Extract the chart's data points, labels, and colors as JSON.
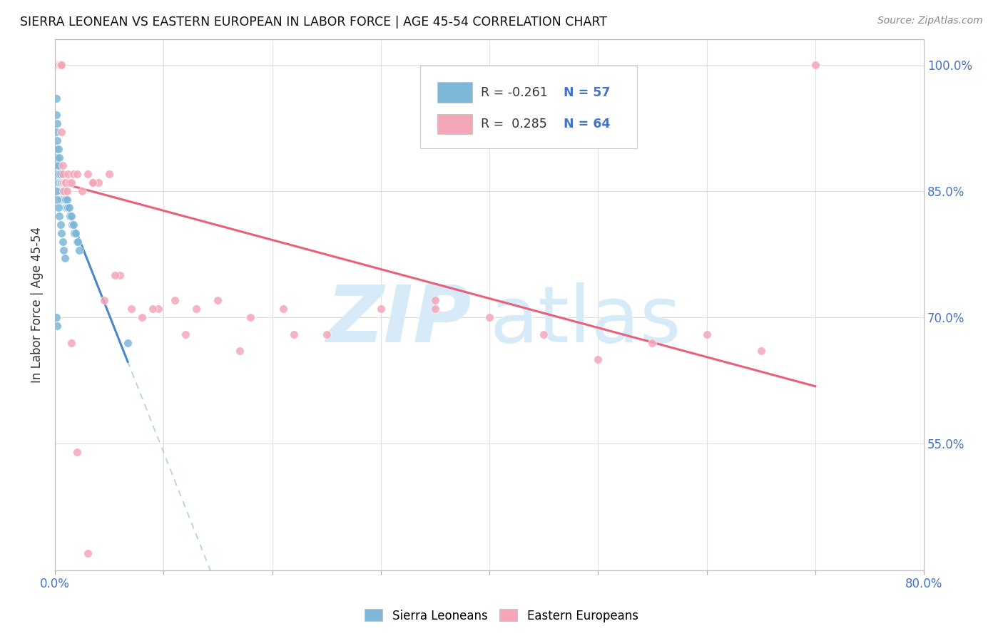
{
  "title": "SIERRA LEONEAN VS EASTERN EUROPEAN IN LABOR FORCE | AGE 45-54 CORRELATION CHART",
  "source": "Source: ZipAtlas.com",
  "ylabel": "In Labor Force | Age 45-54",
  "xlim": [
    0.0,
    0.8
  ],
  "ylim": [
    0.4,
    1.03
  ],
  "legend_r_blue": "-0.261",
  "legend_n_blue": "57",
  "legend_r_pink": "0.285",
  "legend_n_pink": "64",
  "color_blue": "#7eb8d8",
  "color_pink": "#f4a7b9",
  "color_trendline_blue": "#4a86c8",
  "color_trendline_pink": "#e8607a",
  "watermark_zip_color": "#d6eaf8",
  "watermark_atlas_color": "#d6eaf8",
  "background_color": "#ffffff",
  "grid_color": "#dddddd",
  "blue_x": [
    0.001,
    0.001,
    0.001,
    0.001,
    0.001,
    0.002,
    0.002,
    0.002,
    0.002,
    0.002,
    0.003,
    0.003,
    0.003,
    0.003,
    0.004,
    0.004,
    0.004,
    0.004,
    0.005,
    0.005,
    0.005,
    0.006,
    0.006,
    0.006,
    0.007,
    0.007,
    0.008,
    0.008,
    0.009,
    0.009,
    0.01,
    0.01,
    0.011,
    0.011,
    0.012,
    0.013,
    0.014,
    0.015,
    0.016,
    0.017,
    0.018,
    0.019,
    0.02,
    0.021,
    0.022,
    0.001,
    0.002,
    0.003,
    0.004,
    0.005,
    0.006,
    0.007,
    0.008,
    0.009,
    0.001,
    0.002,
    0.067
  ],
  "blue_y": [
    0.96,
    0.94,
    0.92,
    0.9,
    0.88,
    0.93,
    0.91,
    0.89,
    0.87,
    0.86,
    0.9,
    0.88,
    0.86,
    0.85,
    0.89,
    0.87,
    0.86,
    0.85,
    0.87,
    0.86,
    0.85,
    0.86,
    0.85,
    0.84,
    0.86,
    0.85,
    0.85,
    0.84,
    0.85,
    0.84,
    0.84,
    0.83,
    0.84,
    0.83,
    0.83,
    0.83,
    0.82,
    0.82,
    0.81,
    0.81,
    0.8,
    0.8,
    0.79,
    0.79,
    0.78,
    0.85,
    0.84,
    0.83,
    0.82,
    0.81,
    0.8,
    0.79,
    0.78,
    0.77,
    0.7,
    0.69,
    0.67
  ],
  "pink_x": [
    0.001,
    0.001,
    0.001,
    0.002,
    0.002,
    0.002,
    0.003,
    0.003,
    0.003,
    0.004,
    0.004,
    0.004,
    0.005,
    0.005,
    0.005,
    0.006,
    0.006,
    0.007,
    0.007,
    0.008,
    0.008,
    0.009,
    0.01,
    0.011,
    0.012,
    0.013,
    0.015,
    0.017,
    0.02,
    0.025,
    0.03,
    0.035,
    0.04,
    0.05,
    0.06,
    0.035,
    0.045,
    0.055,
    0.07,
    0.08,
    0.095,
    0.11,
    0.13,
    0.15,
    0.18,
    0.21,
    0.25,
    0.3,
    0.35,
    0.4,
    0.45,
    0.5,
    0.55,
    0.6,
    0.65,
    0.7,
    0.02,
    0.03,
    0.12,
    0.09,
    0.015,
    0.17,
    0.22,
    0.35
  ],
  "pink_y": [
    1.0,
    1.0,
    1.0,
    1.0,
    1.0,
    1.0,
    1.0,
    1.0,
    1.0,
    1.0,
    1.0,
    1.0,
    1.0,
    1.0,
    1.0,
    1.0,
    0.92,
    0.88,
    0.87,
    0.86,
    0.85,
    0.86,
    0.86,
    0.85,
    0.87,
    0.86,
    0.86,
    0.87,
    0.87,
    0.85,
    0.87,
    0.86,
    0.86,
    0.87,
    0.75,
    0.86,
    0.72,
    0.75,
    0.71,
    0.7,
    0.71,
    0.72,
    0.71,
    0.72,
    0.7,
    0.71,
    0.68,
    0.71,
    0.71,
    0.7,
    0.68,
    0.65,
    0.67,
    0.68,
    0.66,
    1.0,
    0.54,
    0.42,
    0.68,
    0.71,
    0.67,
    0.66,
    0.68,
    0.72
  ]
}
